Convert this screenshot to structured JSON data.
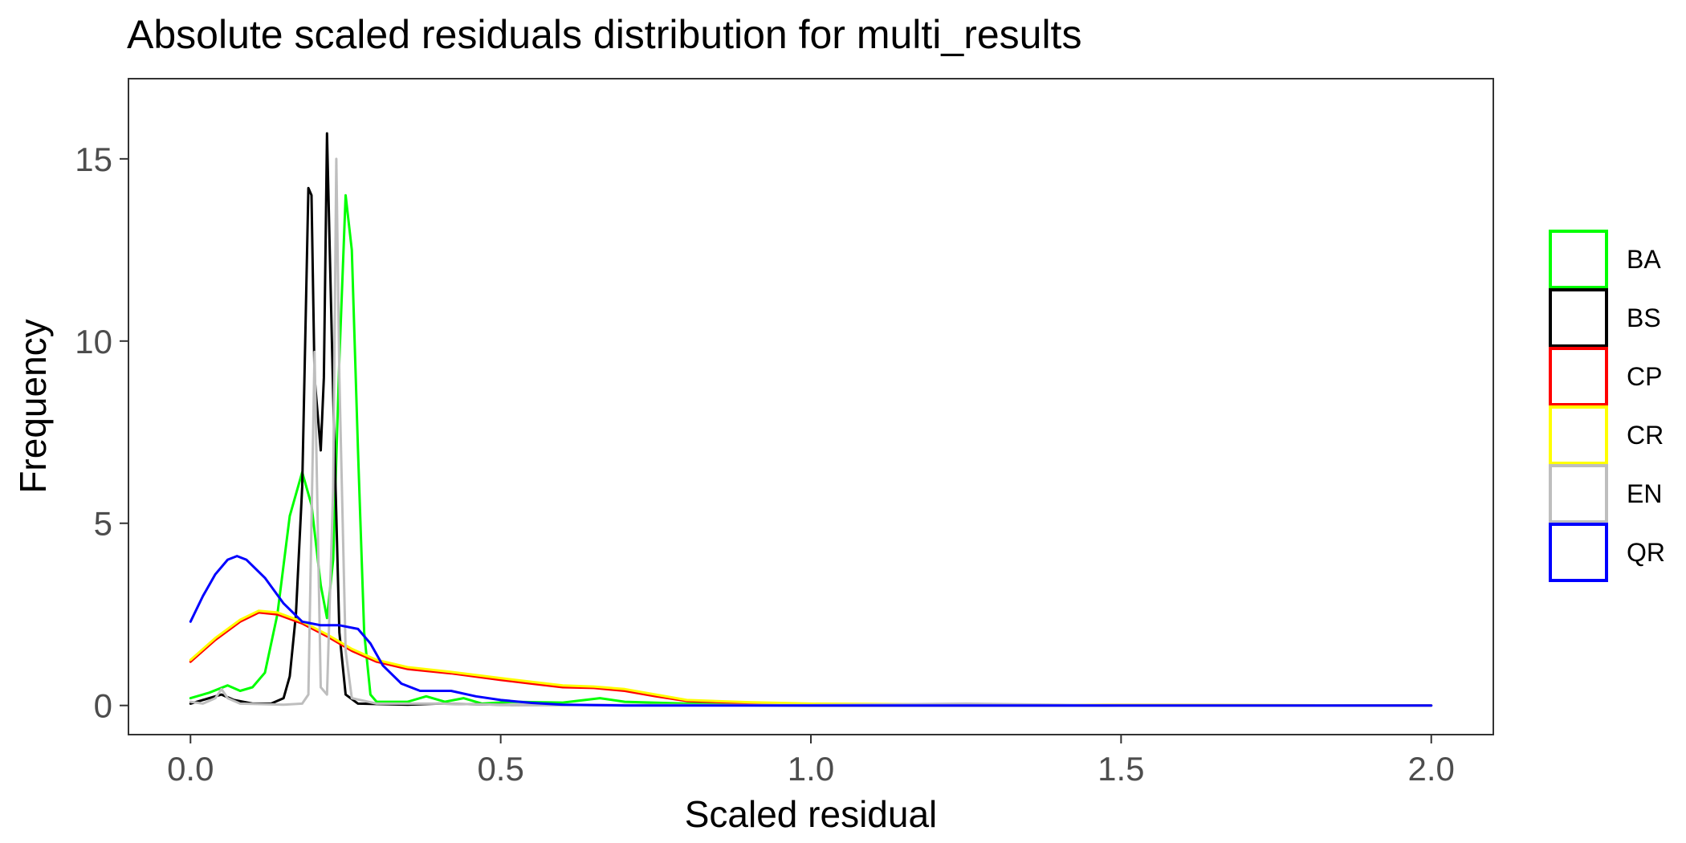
{
  "chart_data": {
    "type": "line",
    "title": "Absolute scaled residuals distribution for multi_results",
    "xlabel": "Scaled residual",
    "ylabel": "Frequency",
    "xlim": [
      -0.1,
      2.1
    ],
    "ylim": [
      -0.8,
      17.2
    ],
    "xticks": [
      0.0,
      0.5,
      1.0,
      1.5,
      2.0
    ],
    "xtick_labels": [
      "0.0",
      "0.5",
      "1.0",
      "1.5",
      "2.0"
    ],
    "yticks": [
      0,
      5,
      10,
      15
    ],
    "ytick_labels": [
      "0",
      "5",
      "10",
      "15"
    ],
    "grid": false,
    "legend_position": "right",
    "series": [
      {
        "name": "BA",
        "color": "#00ff00",
        "points": [
          [
            0.0,
            0.2
          ],
          [
            0.03,
            0.35
          ],
          [
            0.06,
            0.55
          ],
          [
            0.08,
            0.4
          ],
          [
            0.1,
            0.5
          ],
          [
            0.12,
            0.9
          ],
          [
            0.14,
            2.5
          ],
          [
            0.16,
            5.2
          ],
          [
            0.18,
            6.4
          ],
          [
            0.195,
            5.5
          ],
          [
            0.21,
            3.3
          ],
          [
            0.22,
            2.4
          ],
          [
            0.23,
            4.0
          ],
          [
            0.24,
            9.5
          ],
          [
            0.25,
            14.0
          ],
          [
            0.26,
            12.5
          ],
          [
            0.27,
            7.0
          ],
          [
            0.28,
            2.0
          ],
          [
            0.29,
            0.3
          ],
          [
            0.3,
            0.1
          ],
          [
            0.35,
            0.1
          ],
          [
            0.38,
            0.25
          ],
          [
            0.41,
            0.1
          ],
          [
            0.44,
            0.2
          ],
          [
            0.47,
            0.05
          ],
          [
            0.52,
            0.1
          ],
          [
            0.6,
            0.08
          ],
          [
            0.66,
            0.2
          ],
          [
            0.7,
            0.1
          ],
          [
            0.8,
            0.05
          ],
          [
            1.0,
            0.02
          ],
          [
            1.5,
            0.01
          ],
          [
            2.0,
            0.0
          ]
        ]
      },
      {
        "name": "BS",
        "color": "#000000",
        "points": [
          [
            0.0,
            0.05
          ],
          [
            0.03,
            0.2
          ],
          [
            0.05,
            0.3
          ],
          [
            0.07,
            0.15
          ],
          [
            0.1,
            0.05
          ],
          [
            0.13,
            0.05
          ],
          [
            0.15,
            0.2
          ],
          [
            0.16,
            0.8
          ],
          [
            0.17,
            2.5
          ],
          [
            0.18,
            6.0
          ],
          [
            0.19,
            14.2
          ],
          [
            0.195,
            14.0
          ],
          [
            0.2,
            9.0
          ],
          [
            0.21,
            7.0
          ],
          [
            0.215,
            9.0
          ],
          [
            0.22,
            15.7
          ],
          [
            0.23,
            8.5
          ],
          [
            0.24,
            2.0
          ],
          [
            0.25,
            0.3
          ],
          [
            0.27,
            0.05
          ],
          [
            0.35,
            0.02
          ],
          [
            0.4,
            0.05
          ],
          [
            0.5,
            0.02
          ],
          [
            1.0,
            0.0
          ],
          [
            1.5,
            0.0
          ],
          [
            2.0,
            0.0
          ]
        ]
      },
      {
        "name": "CP",
        "color": "#ff0000",
        "points": [
          [
            0.0,
            1.2
          ],
          [
            0.04,
            1.8
          ],
          [
            0.08,
            2.3
          ],
          [
            0.11,
            2.55
          ],
          [
            0.14,
            2.5
          ],
          [
            0.18,
            2.25
          ],
          [
            0.22,
            1.9
          ],
          [
            0.26,
            1.5
          ],
          [
            0.3,
            1.2
          ],
          [
            0.35,
            1.0
          ],
          [
            0.42,
            0.88
          ],
          [
            0.5,
            0.7
          ],
          [
            0.55,
            0.6
          ],
          [
            0.6,
            0.5
          ],
          [
            0.65,
            0.48
          ],
          [
            0.7,
            0.4
          ],
          [
            0.75,
            0.25
          ],
          [
            0.8,
            0.12
          ],
          [
            0.9,
            0.07
          ],
          [
            1.0,
            0.04
          ],
          [
            1.2,
            0.02
          ],
          [
            1.5,
            0.01
          ],
          [
            2.0,
            0.0
          ]
        ]
      },
      {
        "name": "CR",
        "color": "#ffff00",
        "points": [
          [
            0.0,
            1.25
          ],
          [
            0.04,
            1.85
          ],
          [
            0.08,
            2.35
          ],
          [
            0.11,
            2.6
          ],
          [
            0.14,
            2.55
          ],
          [
            0.18,
            2.3
          ],
          [
            0.22,
            1.95
          ],
          [
            0.26,
            1.55
          ],
          [
            0.3,
            1.25
          ],
          [
            0.35,
            1.05
          ],
          [
            0.42,
            0.92
          ],
          [
            0.5,
            0.75
          ],
          [
            0.55,
            0.65
          ],
          [
            0.6,
            0.55
          ],
          [
            0.65,
            0.52
          ],
          [
            0.7,
            0.45
          ],
          [
            0.75,
            0.3
          ],
          [
            0.8,
            0.15
          ],
          [
            0.9,
            0.09
          ],
          [
            1.0,
            0.05
          ],
          [
            1.2,
            0.03
          ],
          [
            1.5,
            0.01
          ],
          [
            2.0,
            0.0
          ]
        ]
      },
      {
        "name": "EN",
        "color": "#bebebe",
        "points": [
          [
            0.0,
            0.1
          ],
          [
            0.02,
            0.05
          ],
          [
            0.04,
            0.2
          ],
          [
            0.05,
            0.45
          ],
          [
            0.06,
            0.2
          ],
          [
            0.08,
            0.05
          ],
          [
            0.15,
            0.02
          ],
          [
            0.18,
            0.05
          ],
          [
            0.19,
            0.3
          ],
          [
            0.2,
            9.7
          ],
          [
            0.21,
            0.5
          ],
          [
            0.22,
            0.3
          ],
          [
            0.23,
            6.0
          ],
          [
            0.235,
            15.0
          ],
          [
            0.24,
            9.0
          ],
          [
            0.25,
            1.5
          ],
          [
            0.26,
            0.2
          ],
          [
            0.3,
            0.05
          ],
          [
            0.4,
            0.05
          ],
          [
            0.5,
            0.02
          ],
          [
            1.0,
            0.01
          ],
          [
            1.25,
            0.05
          ],
          [
            1.5,
            0.0
          ],
          [
            2.0,
            0.0
          ]
        ]
      },
      {
        "name": "QR",
        "color": "#0000ff",
        "points": [
          [
            0.0,
            2.3
          ],
          [
            0.02,
            3.0
          ],
          [
            0.04,
            3.6
          ],
          [
            0.06,
            4.0
          ],
          [
            0.075,
            4.1
          ],
          [
            0.09,
            4.0
          ],
          [
            0.12,
            3.5
          ],
          [
            0.15,
            2.8
          ],
          [
            0.18,
            2.3
          ],
          [
            0.21,
            2.2
          ],
          [
            0.24,
            2.2
          ],
          [
            0.27,
            2.1
          ],
          [
            0.29,
            1.7
          ],
          [
            0.31,
            1.1
          ],
          [
            0.34,
            0.6
          ],
          [
            0.37,
            0.4
          ],
          [
            0.42,
            0.4
          ],
          [
            0.46,
            0.25
          ],
          [
            0.5,
            0.15
          ],
          [
            0.55,
            0.07
          ],
          [
            0.6,
            0.02
          ],
          [
            0.7,
            0.0
          ],
          [
            1.0,
            0.0
          ],
          [
            1.5,
            0.0
          ],
          [
            2.0,
            0.0
          ]
        ]
      }
    ]
  }
}
